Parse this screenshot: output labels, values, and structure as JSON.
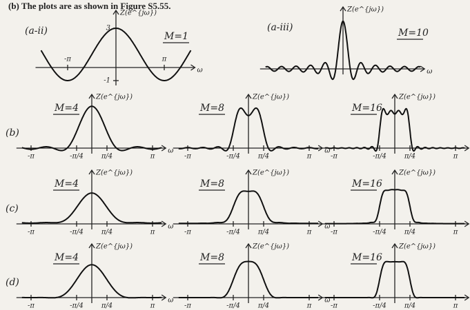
{
  "caption": "(b) The plots are as shown in Figure S5.55.",
  "row_labels": [
    "(b)",
    "(c)",
    "(d)"
  ],
  "panels": [
    {
      "tag": "(a-ii)",
      "m": "M=1",
      "ylabel": "Z(e^{jω})",
      "xlabel": "ω",
      "ticks": [
        "-π",
        "π"
      ],
      "yticks": [
        "3",
        "-1"
      ]
    },
    {
      "tag": "(a-iii)",
      "m": "M=10",
      "ylabel": "Z(e^{jω})",
      "xlabel": "ω"
    },
    {
      "m": "M=4",
      "ylabel": "Z(e^{jω})",
      "xlabel": "ω",
      "ticks": [
        "-π",
        "-π/4",
        "π/4",
        "π"
      ]
    },
    {
      "m": "M=8",
      "ylabel": "Z(e^{jω})",
      "xlabel": "ω",
      "ticks": [
        "-π",
        "-π/4",
        "π/4",
        "π"
      ]
    },
    {
      "m": "M=16",
      "ylabel": "Z(e^{jω})",
      "xlabel": "ω",
      "ticks": [
        "-π",
        "-π/4",
        "π/4",
        "π"
      ]
    },
    {
      "m": "M=4",
      "ylabel": "Z(e^{jω})",
      "xlabel": "ω",
      "ticks": [
        "-π",
        "-π/4",
        "π/4",
        "π"
      ]
    },
    {
      "m": "M=8",
      "ylabel": "Z(e^{jω})",
      "xlabel": "ω",
      "ticks": [
        "-π",
        "-π/4",
        "π/4",
        "π"
      ]
    },
    {
      "m": "M=16",
      "ylabel": "Z(e^{jω})",
      "xlabel": "ω",
      "ticks": [
        "-π",
        "-π/4",
        "π/4",
        "π"
      ]
    },
    {
      "m": "M=4",
      "ylabel": "Z(e^{jω})",
      "xlabel": "ω",
      "ticks": [
        "-π",
        "-π/4",
        "π/4",
        "π"
      ]
    },
    {
      "m": "M=8",
      "ylabel": "Z(e^{jω})",
      "xlabel": "ω",
      "ticks": [
        "-π",
        "-π/4",
        "π/4",
        "π"
      ]
    },
    {
      "m": "M=16",
      "ylabel": "Z(e^{jω})",
      "xlabel": "ω",
      "ticks": [
        "-π",
        "-π/4",
        "π/4",
        "π"
      ]
    }
  ]
}
